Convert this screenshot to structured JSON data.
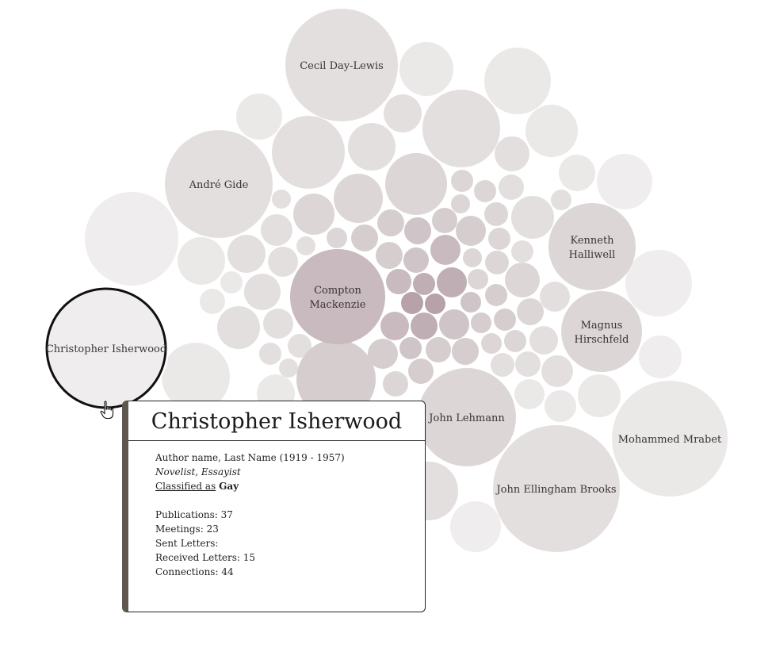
{
  "nodes": [
    {
      "label": "Cecil Day-Lewis",
      "tone": 2
    },
    {
      "label": "André Gide",
      "tone": 2
    },
    {
      "label": "Kenneth Halliwell",
      "tone": 3
    },
    {
      "label": "Compton Mackenzie",
      "tone": 6
    },
    {
      "label": "Magnus Hirschfeld",
      "tone": 3
    },
    {
      "label": "Christopher Isherwood",
      "tone": 0,
      "selected": true
    },
    {
      "label": "John Lehmann",
      "tone": 3
    },
    {
      "label": "Mohammed Mrabet",
      "tone": 1
    },
    {
      "label": "John Ellingham Brooks",
      "tone": 2
    }
  ],
  "tooltip": {
    "name": "Christopher Isherwood",
    "subtitle": "Author name, Last Name (1919 - 1957)",
    "genres": "Novelist, Essayist",
    "classified_label": "Classified as",
    "classified_value": "Gay",
    "publications": "Publications: 37",
    "meetings": "Meetings: 23",
    "sent_letters": "Sent Letters:",
    "received_letters": "Received Letters: 15",
    "connections": "Connections: 44"
  },
  "colors": {
    "tone_0": "#efedee",
    "tone_1": "#ebe8e8",
    "tone_2": "#e4dfdf",
    "tone_3": "#ddd6d6",
    "tone_4": "#d6cdcf",
    "tone_5": "#cfc4c7",
    "tone_6": "#c8babe",
    "tone_7": "#bfaeb3",
    "tone_8": "#b6a2a8",
    "selected_stroke": "#111111",
    "tooltip_accent": "#5f574d"
  }
}
